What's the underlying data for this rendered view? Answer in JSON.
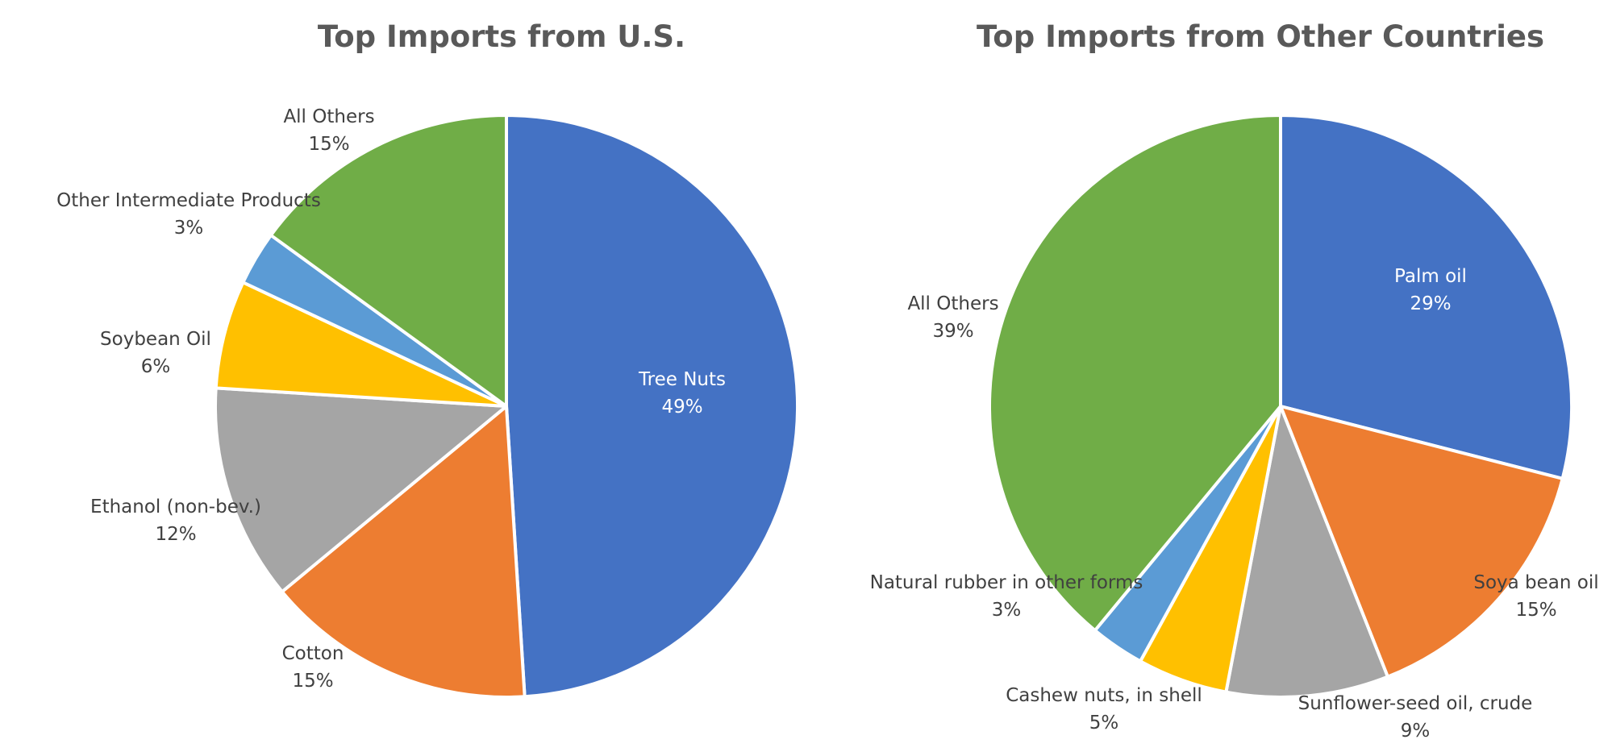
{
  "chart_data": [
    {
      "type": "pie",
      "title": "Top Imports from U.S.",
      "slices": [
        {
          "label": "Tree Nuts",
          "value": 49,
          "value_text": "49%",
          "color": "#4472C4",
          "label_inside": true
        },
        {
          "label": "Cotton",
          "value": 15,
          "value_text": "15%",
          "color": "#ED7D31"
        },
        {
          "label": "Ethanol (non-bev.)",
          "value": 12,
          "value_text": "12%",
          "color": "#A5A5A5"
        },
        {
          "label": "Soybean Oil",
          "value": 6,
          "value_text": "6%",
          "color": "#FFC000"
        },
        {
          "label": "Other Intermediate Products",
          "value": 3,
          "value_text": "3%",
          "color": "#5B9BD5"
        },
        {
          "label": "All Others",
          "value": 15,
          "value_text": "15%",
          "color": "#70AD47"
        }
      ]
    },
    {
      "type": "pie",
      "title": "Top Imports from Other Countries",
      "slices": [
        {
          "label": "Palm oil",
          "value": 29,
          "value_text": "29%",
          "color": "#4472C4",
          "label_inside": true
        },
        {
          "label": "Soya bean oil",
          "value": 15,
          "value_text": "15%",
          "color": "#ED7D31"
        },
        {
          "label": "Sunflower-seed oil, crude",
          "value": 9,
          "value_text": "9%",
          "color": "#A5A5A5"
        },
        {
          "label": "Cashew nuts, in shell",
          "value": 5,
          "value_text": "5%",
          "color": "#FFC000"
        },
        {
          "label": "Natural rubber in other forms",
          "value": 3,
          "value_text": "3%",
          "color": "#5B9BD5"
        },
        {
          "label": "All Others",
          "value": 39,
          "value_text": "39%",
          "color": "#70AD47"
        }
      ]
    }
  ]
}
